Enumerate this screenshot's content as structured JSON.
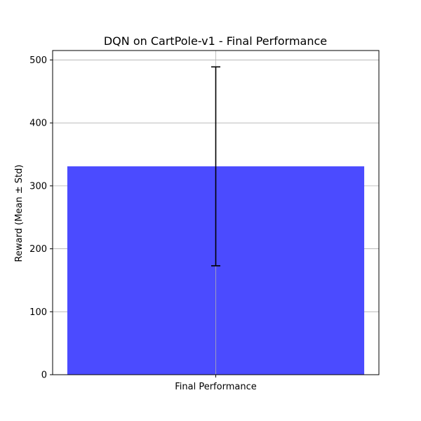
{
  "chart_data": {
    "type": "bar",
    "title": "DQN on CartPole-v1 - Final Performance",
    "xlabel": "",
    "ylabel": "Reward (Mean ± Std)",
    "categories": [
      "Final Performance"
    ],
    "values": [
      331
    ],
    "error": [
      158
    ],
    "ylim": [
      0,
      515
    ],
    "yticks": [
      0,
      100,
      200,
      300,
      400,
      500
    ],
    "grid": true,
    "bar_color": "#4b4bff",
    "error_color": "#000000",
    "grid_color": "#b0b0b0"
  }
}
